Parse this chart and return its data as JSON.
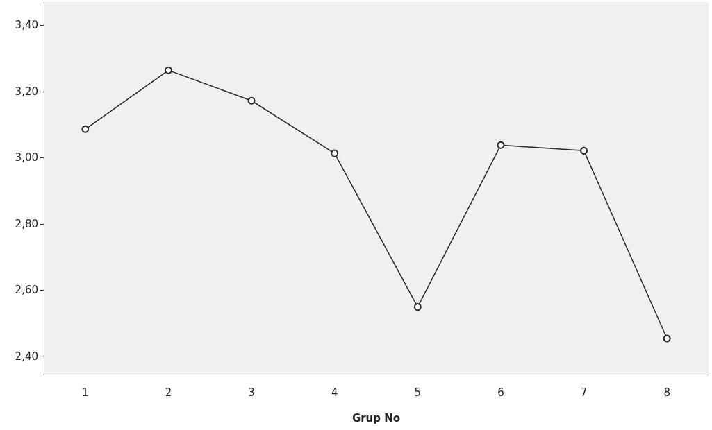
{
  "chart_data": {
    "type": "line",
    "xlabel": "Grup No",
    "categories": [
      "1",
      "2",
      "3",
      "4",
      "5",
      "6",
      "7",
      "8"
    ],
    "series": [
      {
        "color": "#262626",
        "values": [
          3.086,
          3.264,
          3.172,
          3.013,
          2.549,
          3.038,
          3.021,
          2.454
        ]
      }
    ],
    "ylim": [
      2.345,
      3.47
    ],
    "yticks": [
      {
        "value": 2.4,
        "label": "2,40"
      },
      {
        "value": 2.6,
        "label": "2,60"
      },
      {
        "value": 2.8,
        "label": "2,80"
      },
      {
        "value": 3.0,
        "label": "3,00"
      },
      {
        "value": 3.2,
        "label": "3,20"
      },
      {
        "value": 3.4,
        "label": "3,40"
      }
    ],
    "grid": false,
    "marker": "circle",
    "line_style": "solid"
  }
}
